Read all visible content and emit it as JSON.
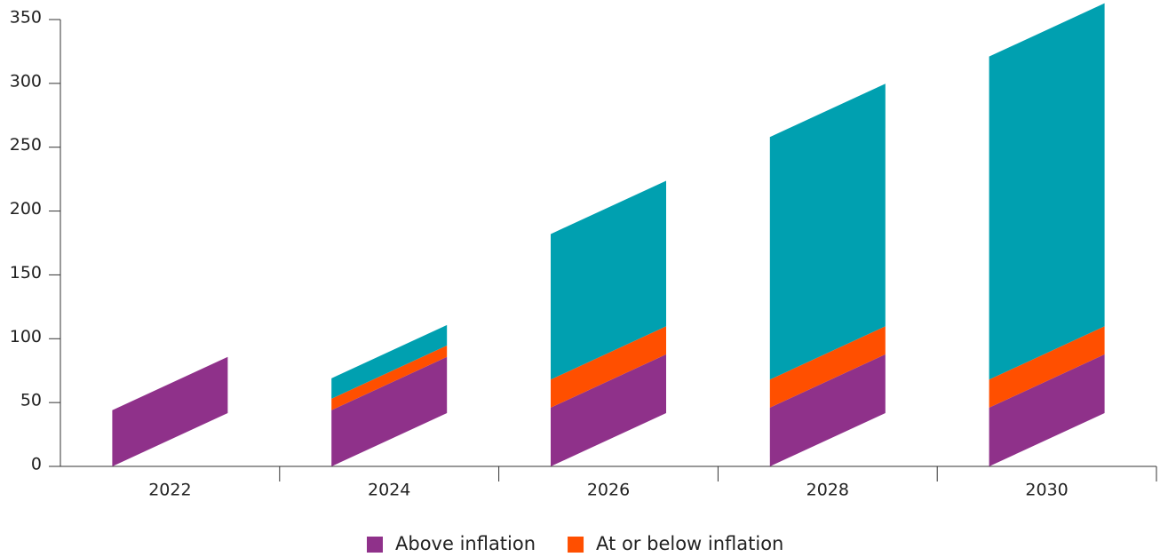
{
  "chart_data": {
    "type": "bar",
    "stacked": true,
    "categories": [
      "2022",
      "2024",
      "2026",
      "2028",
      "2030"
    ],
    "series": [
      {
        "name": "Above inflation",
        "color": "#8f318a",
        "values": [
          44,
          44,
          46,
          46,
          46
        ]
      },
      {
        "name": "At or below inflation",
        "color": "#ff4f00",
        "values": [
          0,
          9,
          22,
          22,
          22
        ]
      },
      {
        "color": "#00a0b0",
        "values": [
          0,
          16,
          114,
          190,
          253
        ]
      }
    ],
    "ylim": [
      0,
      350
    ],
    "yticks": [
      0,
      50,
      100,
      150,
      200,
      250,
      300,
      350
    ]
  }
}
